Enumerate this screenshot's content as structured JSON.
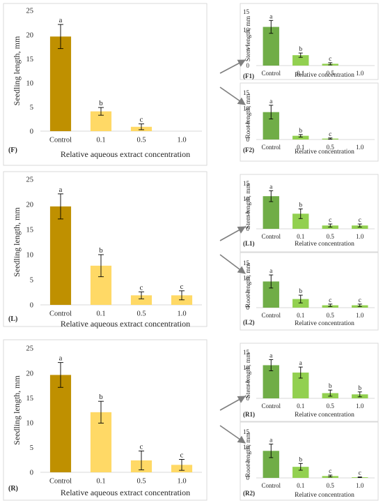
{
  "colors": {
    "control_big": "#bf9000",
    "treated_big": "#ffd966",
    "control_small": "#70ad47",
    "treated_small": "#92d050",
    "panel_border": "#d9d9d9",
    "axis": "#d9d9d9",
    "arrow": "#7f7f7f",
    "text": "#262626"
  },
  "chart_data": [
    {
      "id": "F",
      "type": "bar",
      "panel_label": "(F)",
      "categories": [
        "Control",
        "0.1",
        "0.5",
        "1.0"
      ],
      "values": [
        19.6,
        4.1,
        0.9,
        0
      ],
      "errors": [
        2.5,
        0.8,
        0.6,
        0
      ],
      "letters": [
        "a",
        "b",
        "c",
        ""
      ],
      "yticks": [
        "0",
        "5",
        "10",
        "15",
        "20",
        "25"
      ],
      "ylim": [
        0,
        25
      ],
      "xlabel": "Relative aqueous extract concentration",
      "ylabel": "Seedling length, mm"
    },
    {
      "id": "F1",
      "type": "bar",
      "panel_label": "(F1)",
      "categories": [
        "Control",
        "0.1",
        "0.5",
        "1.0"
      ],
      "values": [
        10.8,
        2.9,
        0.5,
        0
      ],
      "errors": [
        1.8,
        0.6,
        0.3,
        0
      ],
      "letters": [
        "a",
        "b",
        "c",
        ""
      ],
      "yticks": [
        "0",
        "5",
        "10",
        "15"
      ],
      "ylim": [
        0,
        15
      ],
      "xlabel": "Relative concentration",
      "ylabel": "Stem length, mm"
    },
    {
      "id": "F2",
      "type": "bar",
      "panel_label": "(F2)",
      "categories": [
        "Control",
        "0.1",
        "0.5",
        "1.0"
      ],
      "values": [
        8.8,
        1.2,
        0.3,
        0
      ],
      "errors": [
        2.2,
        0.4,
        0.2,
        0
      ],
      "letters": [
        "a",
        "b",
        "c",
        ""
      ],
      "yticks": [
        "0",
        "5",
        "10",
        "15"
      ],
      "ylim": [
        0,
        15
      ],
      "xlabel": "Relative concentration",
      "ylabel": "Root length, mm"
    },
    {
      "id": "L",
      "type": "bar",
      "panel_label": "(L)",
      "categories": [
        "Control",
        "0.1",
        "0.5",
        "1.0"
      ],
      "values": [
        19.6,
        7.8,
        1.9,
        1.9
      ],
      "errors": [
        2.5,
        2.2,
        0.7,
        0.9
      ],
      "letters": [
        "a",
        "b",
        "c",
        "c"
      ],
      "yticks": [
        "0",
        "5",
        "10",
        "15",
        "20",
        "25"
      ],
      "ylim": [
        0,
        25
      ],
      "xlabel": "Relative aqueous extract concentration",
      "ylabel": "Seedling length, mm"
    },
    {
      "id": "L1",
      "type": "bar",
      "panel_label": "(L1)",
      "categories": [
        "Control",
        "0.1",
        "0.5",
        "1.0"
      ],
      "values": [
        10.8,
        5.0,
        1.1,
        1.1
      ],
      "errors": [
        1.8,
        1.6,
        0.5,
        0.5
      ],
      "letters": [
        "a",
        "b",
        "c",
        "c"
      ],
      "yticks": [
        "0",
        "5",
        "10",
        "15"
      ],
      "ylim": [
        0,
        15
      ],
      "xlabel": "Relative concentration",
      "ylabel": "Stem length, mm"
    },
    {
      "id": "L2",
      "type": "bar",
      "panel_label": "(L2)",
      "categories": [
        "Control",
        "0.1",
        "0.5",
        "1.0"
      ],
      "values": [
        8.8,
        2.9,
        0.8,
        0.8
      ],
      "errors": [
        2.2,
        1.3,
        0.4,
        0.4
      ],
      "letters": [
        "a",
        "b",
        "c",
        "c"
      ],
      "yticks": [
        "0",
        "5",
        "10",
        "15"
      ],
      "ylim": [
        0,
        15
      ],
      "xlabel": "Relative concentration",
      "ylabel": "Root length, mm"
    },
    {
      "id": "R",
      "type": "bar",
      "panel_label": "(R)",
      "categories": [
        "Control",
        "0.1",
        "0.5",
        "1.0"
      ],
      "values": [
        19.6,
        12.1,
        2.4,
        1.5
      ],
      "errors": [
        2.5,
        2.2,
        1.9,
        1.1
      ],
      "letters": [
        "a",
        "b",
        "c",
        "c"
      ],
      "yticks": [
        "0",
        "5",
        "10",
        "15",
        "20",
        "25"
      ],
      "ylim": [
        0,
        25
      ],
      "xlabel": "Relative aqueous extract concentration",
      "ylabel": "Seedling length, mm"
    },
    {
      "id": "R1",
      "type": "bar",
      "panel_label": "(R1)",
      "categories": [
        "Control",
        "0.1",
        "0.5",
        "1.0"
      ],
      "values": [
        10.8,
        8.4,
        1.7,
        1.3
      ],
      "errors": [
        1.8,
        1.8,
        1.0,
        0.8
      ],
      "letters": [
        "a",
        "a",
        "b",
        "b"
      ],
      "yticks": [
        "0",
        "5",
        "10",
        "15"
      ],
      "ylim": [
        0,
        15
      ],
      "xlabel": "Relative concentration",
      "ylabel": "Stem length, mm"
    },
    {
      "id": "R2",
      "type": "bar",
      "panel_label": "(R2)",
      "categories": [
        "Control",
        "0.1",
        "0.5",
        "1.0"
      ],
      "values": [
        8.8,
        3.6,
        0.6,
        0.2
      ],
      "errors": [
        2.2,
        1.1,
        0.3,
        0.1
      ],
      "letters": [
        "a",
        "b",
        "c",
        "c"
      ],
      "yticks": [
        "0",
        "5",
        "10",
        "15"
      ],
      "ylim": [
        0,
        15
      ],
      "xlabel": "Relative concentration",
      "ylabel": "Root length, mm"
    }
  ]
}
